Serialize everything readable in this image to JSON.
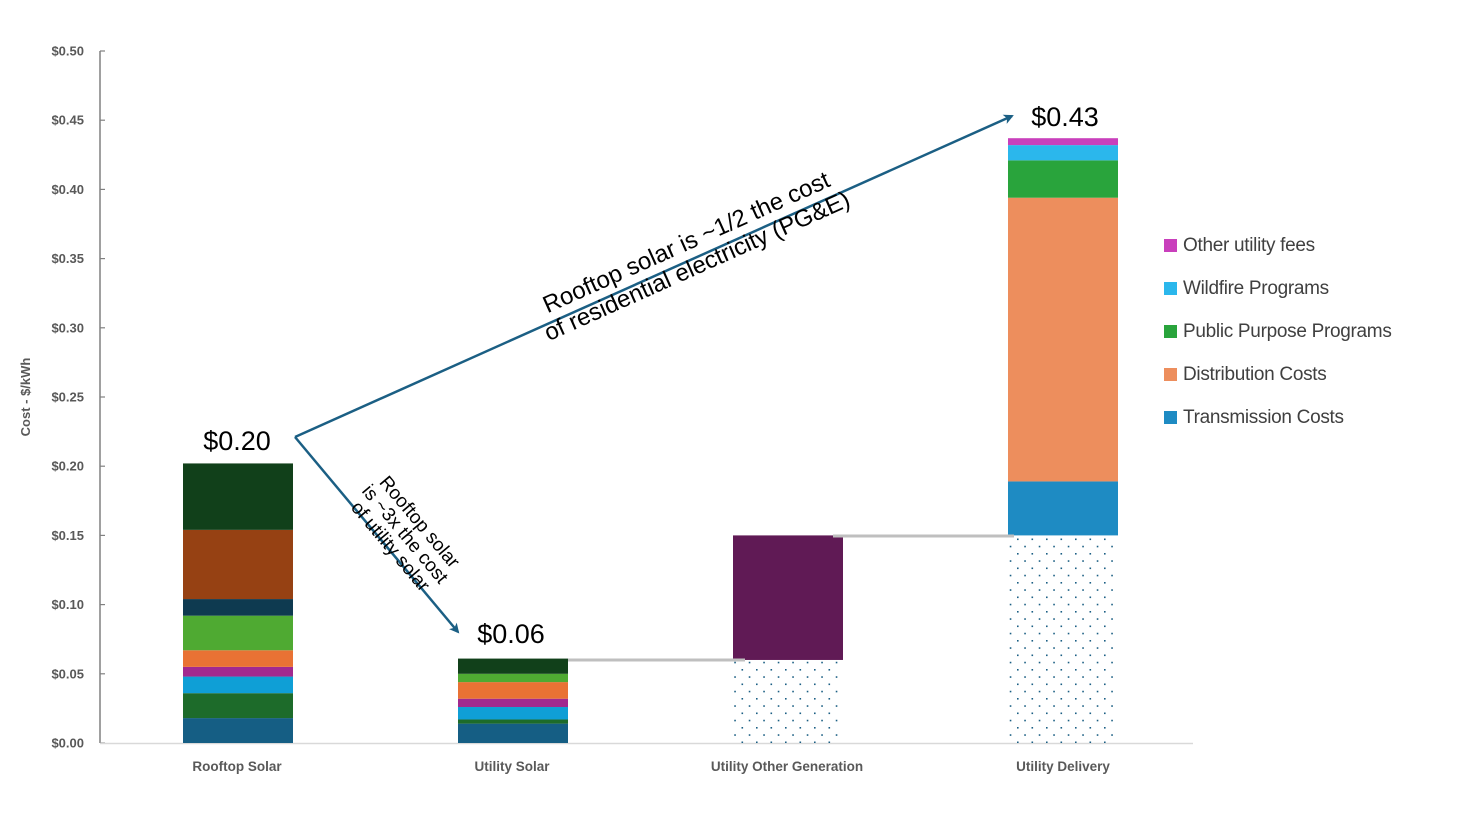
{
  "chart_data": {
    "type": "bar",
    "subtype": "stacked-waterfall",
    "title": "",
    "xlabel": "",
    "ylabel": "Cost - $/kWh",
    "ylim": [
      0,
      0.5
    ],
    "yticks": [
      "$0.00",
      "$0.05",
      "$0.10",
      "$0.15",
      "$0.20",
      "$0.25",
      "$0.30",
      "$0.35",
      "$0.40",
      "$0.45",
      "$0.50"
    ],
    "grid": false,
    "legend_position": "right",
    "categories": [
      "Rooftop Solar",
      "Utility Solar",
      "Utility Other Generation",
      "Utility Delivery"
    ],
    "totals": [
      {
        "category": "Rooftop Solar",
        "label": "$0.20",
        "value": 0.2
      },
      {
        "category": "Utility Solar",
        "label": "$0.06",
        "value": 0.06
      },
      {
        "category": "Utility Delivery",
        "label": "$0.43",
        "value": 0.43
      }
    ],
    "bars": [
      {
        "category": "Rooftop Solar",
        "base": 0,
        "segments": [
          {
            "color": "#155e84",
            "value": 0.018
          },
          {
            "color": "#1d6b2a",
            "value": 0.018
          },
          {
            "color": "#0f9fd6",
            "value": 0.012
          },
          {
            "color": "#a2298f",
            "value": 0.007
          },
          {
            "color": "#e97234",
            "value": 0.012
          },
          {
            "color": "#4faa32",
            "value": 0.025
          },
          {
            "color": "#0e3a50",
            "value": 0.012
          },
          {
            "color": "#964113",
            "value": 0.05
          },
          {
            "color": "#11401a",
            "value": 0.048
          }
        ]
      },
      {
        "category": "Utility Solar",
        "base": 0,
        "segments": [
          {
            "color": "#155e84",
            "value": 0.014
          },
          {
            "color": "#1d6b2a",
            "value": 0.003
          },
          {
            "color": "#0f9fd6",
            "value": 0.009
          },
          {
            "color": "#a2298f",
            "value": 0.006
          },
          {
            "color": "#e97234",
            "value": 0.012
          },
          {
            "color": "#4faa32",
            "value": 0.006
          },
          {
            "color": "#11401a",
            "value": 0.011
          }
        ]
      },
      {
        "category": "Utility Other Generation",
        "base": 0.06,
        "base_pattern": "dots",
        "segments": [
          {
            "color": "#601a55",
            "value": 0.09
          }
        ]
      },
      {
        "category": "Utility Delivery",
        "base": 0.15,
        "base_pattern": "dots",
        "segments": [
          {
            "name": "Transmission Costs",
            "color": "#1e8bc3",
            "value": 0.039
          },
          {
            "name": "Distribution Costs",
            "color": "#ed8e5d",
            "value": 0.205
          },
          {
            "name": "Public Purpose Programs",
            "color": "#29a43c",
            "value": 0.027
          },
          {
            "name": "Wildfire Programs",
            "color": "#2bb7ec",
            "value": 0.011
          },
          {
            "name": "Other utility fees",
            "color": "#c93fbc",
            "value": 0.005
          }
        ]
      }
    ],
    "series": [
      {
        "name": "Transmission Costs",
        "values": [
          null,
          null,
          null,
          0.039
        ]
      },
      {
        "name": "Distribution Costs",
        "values": [
          null,
          null,
          null,
          0.205
        ]
      },
      {
        "name": "Public Purpose Programs",
        "values": [
          null,
          null,
          null,
          0.027
        ]
      },
      {
        "name": "Wildfire Programs",
        "values": [
          null,
          null,
          null,
          0.011
        ]
      },
      {
        "name": "Other utility fees",
        "values": [
          null,
          null,
          null,
          0.005
        ]
      }
    ],
    "annotations": [
      {
        "text": "Rooftop solar is ~1/2 the cost of residential electricity (PG&E)",
        "from": "Rooftop Solar",
        "to": "Utility Delivery"
      },
      {
        "text": "Rooftop solar is ~3x the cost of utility solar",
        "from": "Rooftop Solar",
        "to": "Utility Solar"
      }
    ]
  },
  "axis": {
    "y_title": "Cost - $/kWh",
    "y_ticks": [
      "$0.00",
      "$0.05",
      "$0.10",
      "$0.15",
      "$0.20",
      "$0.25",
      "$0.30",
      "$0.35",
      "$0.40",
      "$0.45",
      "$0.50"
    ],
    "categories": [
      "Rooftop Solar",
      "Utility Solar",
      "Utility Other Generation",
      "Utility Delivery"
    ]
  },
  "totals": {
    "rooftop": "$0.20",
    "utility_solar": "$0.06",
    "delivery": "$0.43"
  },
  "annotations": {
    "half_line1": "Rooftop solar is ~1/2 the cost",
    "half_line2": "of residential electricity (PG&E)",
    "triple_line1": "Rooftop solar",
    "triple_line2": "is ~3x the cost",
    "triple_line3": "of utility solar"
  },
  "legend": [
    {
      "label": "Other utility fees",
      "color": "#c93fbc"
    },
    {
      "label": "Wildfire Programs",
      "color": "#2bb7ec"
    },
    {
      "label": "Public Purpose Programs",
      "color": "#29a43c"
    },
    {
      "label": "Distribution Costs",
      "color": "#ed8e5d"
    },
    {
      "label": "Transmission Costs",
      "color": "#1e8bc3"
    }
  ],
  "colors": {
    "arrow": "#1b5f84",
    "axis": "#808080",
    "connector": "#bfbfbf",
    "dot_pattern": "#1b5f84"
  }
}
